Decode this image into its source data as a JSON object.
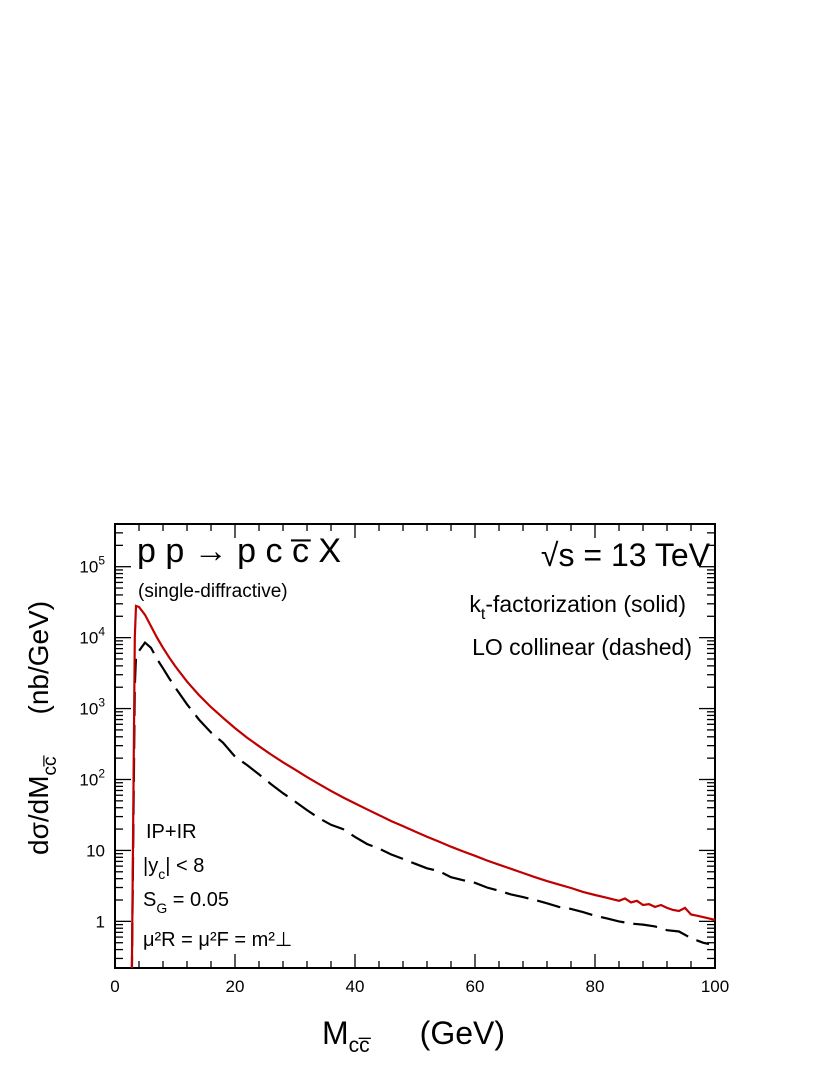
{
  "chart_data": {
    "type": "line",
    "xlim": [
      0,
      100
    ],
    "ylim": [
      0.22,
      400000
    ],
    "yscale": "log",
    "grid": false,
    "x_tick_labels": [
      "0",
      "20",
      "40",
      "60",
      "80",
      "100"
    ],
    "x_tick_values": [
      0,
      20,
      40,
      60,
      80,
      100
    ],
    "y_tick_labels": [
      {
        "value": 1,
        "base": "1",
        "exp": ""
      },
      {
        "value": 10,
        "base": "10",
        "exp": ""
      },
      {
        "value": 100,
        "base": "10",
        "exp": "2"
      },
      {
        "value": 1000,
        "base": "10",
        "exp": "3"
      },
      {
        "value": 10000,
        "base": "10",
        "exp": "4"
      },
      {
        "value": 100000,
        "base": "10",
        "exp": "5"
      }
    ],
    "xlabel": {
      "main": "M",
      "sub": "cc̅",
      "unit": "(GeV)"
    },
    "ylabel": {
      "main": "dσ/dM",
      "sub": "cc̅",
      "unit": "(nb/GeV)"
    },
    "annotations": {
      "process": "p p → p c c̅ X",
      "process_note": "(single-diffractive)",
      "energy": "√s = 13 TeV",
      "method_solid_pre": "k",
      "method_solid_sub": "t",
      "method_solid_post": "-factorization (solid)",
      "method_dashed": "LO collinear (dashed)",
      "reggeon": "IP+IR",
      "rapidity_cut_pre": "|y",
      "rapidity_cut_sub": "c",
      "rapidity_cut_post": "| < 8",
      "gap_survival_pre": "S",
      "gap_survival_sub": "G",
      "gap_survival_post": " = 0.05",
      "scales": "μ²R = μ²F = m²⊥"
    },
    "series": [
      {
        "style": "solid",
        "color": "#c00000",
        "x": [
          2.8,
          3.3,
          3.5,
          4.0,
          5.0,
          6.0,
          7.0,
          8.0,
          9.0,
          10,
          12,
          14,
          16,
          18,
          20,
          22,
          24,
          26,
          28,
          30,
          32,
          34,
          36,
          38,
          40,
          42,
          44,
          46,
          48,
          50,
          52,
          54,
          56,
          58,
          60,
          62,
          64,
          66,
          68,
          70,
          72,
          74,
          76,
          78,
          80,
          82,
          84,
          85,
          86,
          87,
          88,
          89,
          90,
          91,
          92,
          93,
          94,
          95,
          96,
          97,
          98,
          99,
          100
        ],
        "y": [
          0.15,
          10000,
          28000,
          27000,
          21000,
          14500,
          10000,
          7200,
          5300,
          4000,
          2400,
          1550,
          1050,
          740,
          530,
          390,
          295,
          225,
          175,
          138,
          108,
          86,
          69,
          56,
          46,
          38,
          31.5,
          26,
          22,
          18.5,
          15.6,
          13.3,
          11.3,
          9.7,
          8.4,
          7.2,
          6.3,
          5.5,
          4.8,
          4.2,
          3.7,
          3.3,
          2.95,
          2.6,
          2.35,
          2.15,
          1.95,
          2.1,
          1.85,
          1.95,
          1.7,
          1.75,
          1.6,
          1.7,
          1.55,
          1.45,
          1.4,
          1.55,
          1.25,
          1.2,
          1.15,
          1.1,
          1.05
        ]
      },
      {
        "style": "dashed",
        "color": "#000000",
        "x": [
          2.8,
          3.3,
          3.5,
          4.0,
          5.0,
          6.0,
          7.0,
          8.0,
          9.0,
          10,
          12,
          14,
          16,
          18,
          20,
          22,
          24,
          26,
          28,
          30,
          32,
          34,
          36,
          38,
          40,
          42,
          44,
          46,
          48,
          50,
          52,
          54,
          56,
          58,
          60,
          62,
          64,
          66,
          68,
          70,
          72,
          74,
          76,
          78,
          80,
          82,
          84,
          86,
          88,
          90,
          92,
          94,
          96,
          98,
          99
        ],
        "y": [
          0.15,
          2000,
          5500,
          6500,
          8500,
          7200,
          5000,
          3700,
          2700,
          2000,
          1150,
          700,
          460,
          330,
          210,
          160,
          118,
          86,
          64,
          49,
          37,
          28.5,
          23,
          20,
          15.5,
          12.3,
          10.6,
          8.8,
          7.6,
          6.5,
          5.6,
          5.1,
          4.2,
          3.8,
          3.5,
          3.0,
          2.7,
          2.4,
          2.2,
          2.0,
          1.8,
          1.6,
          1.5,
          1.35,
          1.2,
          1.1,
          1.0,
          0.93,
          0.9,
          0.85,
          0.75,
          0.72,
          0.58,
          0.5,
          0.48
        ]
      }
    ]
  }
}
